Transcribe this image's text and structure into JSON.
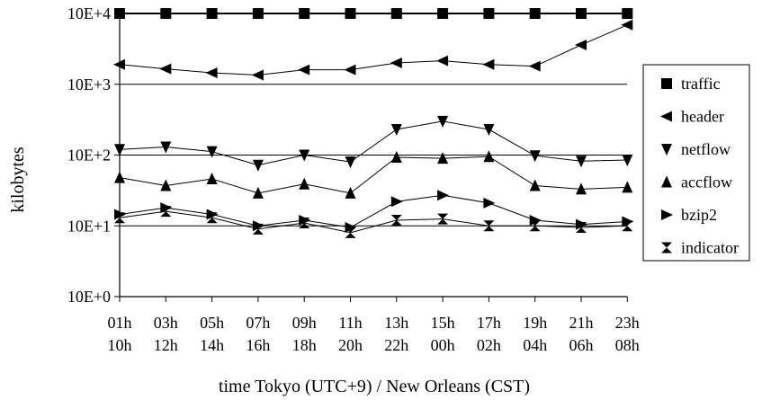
{
  "chart_data": {
    "type": "line",
    "title": "",
    "xlabel": "time Tokyo (UTC+9) / New Orleans (CST)",
    "ylabel": "kilobytes",
    "yscale": "log",
    "ylim": [
      1,
      10000
    ],
    "ytick_values": [
      1,
      10,
      100,
      1000,
      10000
    ],
    "ytick_labels": [
      "10E+0",
      "10E+1",
      "10E+2",
      "10E+3",
      "10E+4"
    ],
    "gridlines_at": [
      10,
      100,
      1000
    ],
    "categories": [
      [
        "01h",
        "10h"
      ],
      [
        "03h",
        "12h"
      ],
      [
        "05h",
        "14h"
      ],
      [
        "07h",
        "16h"
      ],
      [
        "09h",
        "18h"
      ],
      [
        "11h",
        "20h"
      ],
      [
        "13h",
        "22h"
      ],
      [
        "15h",
        "00h"
      ],
      [
        "17h",
        "02h"
      ],
      [
        "19h",
        "04h"
      ],
      [
        "21h",
        "06h"
      ],
      [
        "23h",
        "08h"
      ]
    ],
    "legend_position": "right",
    "series": [
      {
        "name": "traffic",
        "marker": "square",
        "values": [
          10000,
          10000,
          10000,
          10000,
          10000,
          10000,
          10000,
          10000,
          10000,
          10000,
          10000,
          10000
        ]
      },
      {
        "name": "header",
        "marker": "triangle-left",
        "values": [
          1900,
          1650,
          1450,
          1350,
          1600,
          1600,
          2000,
          2150,
          1900,
          1800,
          3600,
          6900
        ]
      },
      {
        "name": "netflow",
        "marker": "triangle-down",
        "values": [
          120,
          130,
          112,
          72,
          100,
          80,
          230,
          300,
          230,
          98,
          82,
          85
        ]
      },
      {
        "name": "accflow",
        "marker": "triangle-up",
        "values": [
          48,
          37,
          46,
          29,
          39,
          29,
          93,
          90,
          95,
          37,
          33,
          35
        ]
      },
      {
        "name": "bzip2",
        "marker": "triangle-right",
        "values": [
          14.5,
          18,
          14.5,
          10,
          12,
          9.5,
          22,
          27,
          21,
          12,
          10.5,
          11.5
        ]
      },
      {
        "name": "indicator",
        "marker": "hourglass",
        "values": [
          13,
          16,
          13,
          9,
          11,
          8,
          12,
          12.5,
          10,
          10,
          9.5,
          10
        ]
      }
    ]
  }
}
